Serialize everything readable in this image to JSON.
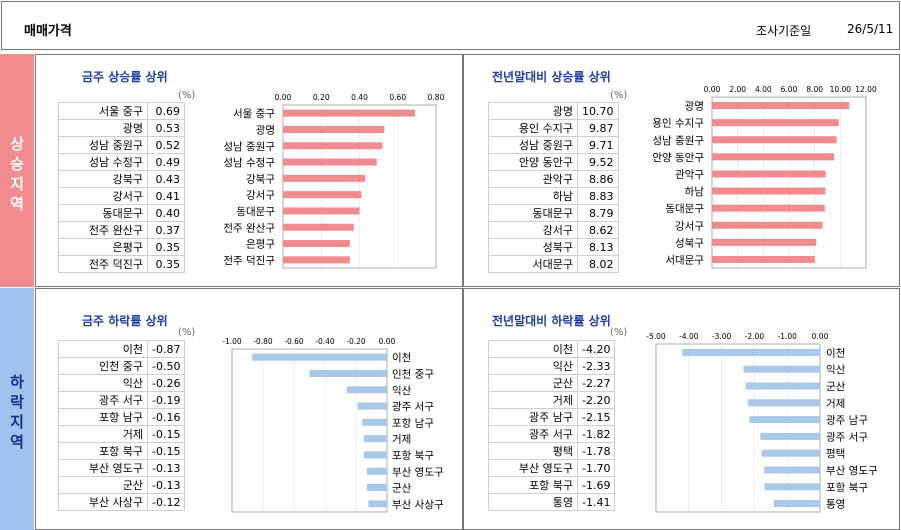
{
  "header": {
    "title": "매매가격",
    "date_label": "조사기준일",
    "date": "26/5/11"
  },
  "side": {
    "up": "상승지역",
    "down": "하락지역",
    "up_color": "#f28b8e",
    "down_color": "#9fc3ee"
  },
  "colors": {
    "up_bar": "#f08b90",
    "down_bar": "#a9c8ea",
    "title_color": "#1f3fa0"
  },
  "unit": "(%)",
  "chart_data": [
    {
      "type": "bar",
      "title": "금주 상승률 상위",
      "categories": [
        "서울 중구",
        "광명",
        "성남 중원구",
        "성남 수정구",
        "강북구",
        "강서구",
        "동대문구",
        "전주 완산구",
        "은평구",
        "전주 덕진구"
      ],
      "values": [
        0.69,
        0.53,
        0.52,
        0.49,
        0.43,
        0.41,
        0.4,
        0.37,
        0.35,
        0.35
      ],
      "value_labels": [
        "0.69",
        "0.53",
        "0.52",
        "0.49",
        "0.43",
        "0.41",
        "0.40",
        "0.37",
        "0.35",
        "0.35"
      ],
      "xlim": [
        0,
        0.8
      ],
      "ticks": [
        "0.00",
        "0.20",
        "0.40",
        "0.60",
        "0.80"
      ]
    },
    {
      "type": "bar",
      "title": "전년말대비 상승률 상위",
      "categories": [
        "광명",
        "용인 수지구",
        "성남 중원구",
        "안양 동안구",
        "관악구",
        "하남",
        "동대문구",
        "강서구",
        "성북구",
        "서대문구"
      ],
      "values": [
        10.7,
        9.87,
        9.71,
        9.52,
        8.86,
        8.83,
        8.79,
        8.62,
        8.13,
        8.02
      ],
      "value_labels": [
        "10.70",
        "9.87",
        "9.71",
        "9.52",
        "8.86",
        "8.83",
        "8.79",
        "8.62",
        "8.13",
        "8.02"
      ],
      "xlim": [
        0,
        12
      ],
      "ticks": [
        "0.00",
        "2.00",
        "4.00",
        "6.00",
        "8.00",
        "10.00",
        "12.00"
      ]
    },
    {
      "type": "bar",
      "title": "금주 하락률 상위",
      "categories": [
        "이천",
        "인천 중구",
        "익산",
        "광주 서구",
        "포항 남구",
        "거제",
        "포항 북구",
        "부산 영도구",
        "군산",
        "부산 사상구"
      ],
      "values": [
        -0.87,
        -0.5,
        -0.26,
        -0.19,
        -0.16,
        -0.15,
        -0.15,
        -0.13,
        -0.13,
        -0.12
      ],
      "value_labels": [
        "-0.87",
        "-0.50",
        "-0.26",
        "-0.19",
        "-0.16",
        "-0.15",
        "-0.15",
        "-0.13",
        "-0.13",
        "-0.12"
      ],
      "xlim": [
        -1.0,
        0
      ],
      "ticks": [
        "-1.00",
        "-0.80",
        "-0.60",
        "-0.40",
        "-0.20",
        "0.00"
      ]
    },
    {
      "type": "bar",
      "title": "전년말대비 하락률 상위",
      "categories": [
        "이천",
        "익산",
        "군산",
        "거제",
        "광주 남구",
        "광주 서구",
        "평택",
        "부산 영도구",
        "포항 북구",
        "통영"
      ],
      "values": [
        -4.2,
        -2.33,
        -2.27,
        -2.2,
        -2.15,
        -1.82,
        -1.78,
        -1.7,
        -1.69,
        -1.41
      ],
      "value_labels": [
        "-4.20",
        "-2.33",
        "-2.27",
        "-2.20",
        "-2.15",
        "-1.82",
        "-1.78",
        "-1.70",
        "-1.69",
        "-1.41"
      ],
      "xlim": [
        -5,
        0
      ],
      "ticks": [
        "-5.00",
        "-4.00",
        "-3.00",
        "-2.00",
        "-1.00",
        "0.00"
      ]
    }
  ]
}
